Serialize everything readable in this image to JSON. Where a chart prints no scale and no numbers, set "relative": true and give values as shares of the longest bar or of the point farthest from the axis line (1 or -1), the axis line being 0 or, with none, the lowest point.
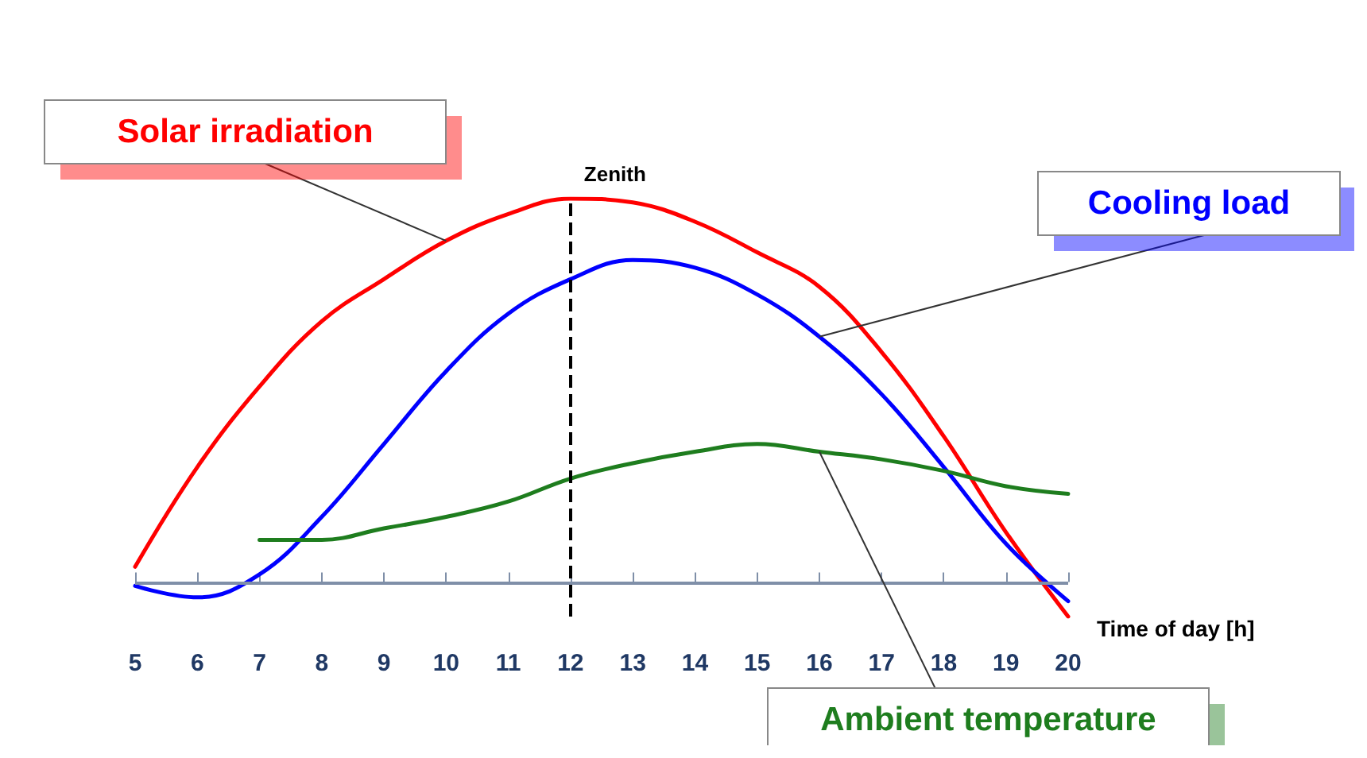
{
  "chart_data": {
    "type": "line",
    "relative": true,
    "xlabel": "Time of day [h]",
    "x": [
      5,
      6,
      7,
      8,
      9,
      10,
      11,
      12,
      13,
      14,
      15,
      16,
      17,
      18,
      19,
      20
    ],
    "xlim": [
      5,
      20
    ],
    "xticks": [
      5,
      6,
      7,
      8,
      9,
      10,
      11,
      12,
      13,
      14,
      15,
      16,
      17,
      18,
      19,
      20
    ],
    "tick_labels": "x",
    "grid": false,
    "legend": false,
    "marker": "none",
    "line_style": "solid",
    "series": [
      {
        "name": "Solar irradiation",
        "color": "#ff0000",
        "values": [
          0.04,
          0.3,
          0.51,
          0.68,
          0.79,
          0.89,
          0.96,
          1.0,
          0.99,
          0.94,
          0.86,
          0.77,
          0.6,
          0.38,
          0.13,
          -0.09
        ]
      },
      {
        "name": "Cooling load",
        "color": "#0000ff",
        "values": [
          -0.01,
          -0.04,
          0.02,
          0.17,
          0.36,
          0.55,
          0.7,
          0.79,
          0.84,
          0.82,
          0.75,
          0.64,
          0.49,
          0.3,
          0.1,
          -0.05
        ]
      },
      {
        "name": "Ambient temperature",
        "color": "#1e7d1e",
        "values": [
          null,
          null,
          0.11,
          0.11,
          0.14,
          0.17,
          0.21,
          0.27,
          0.31,
          0.34,
          0.36,
          0.34,
          0.32,
          0.29,
          0.25,
          0.23
        ]
      }
    ],
    "ref_lines": [
      {
        "axis": "x",
        "value": 12,
        "label": "Zenith",
        "color": "#000000",
        "line_style": "dashed"
      },
      {
        "axis": "y",
        "value": 0,
        "color": "#7f8fa8",
        "line_style": "solid"
      }
    ]
  }
}
